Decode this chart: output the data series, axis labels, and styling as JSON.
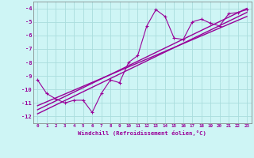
{
  "xlabel": "Windchill (Refroidissement éolien,°C)",
  "bg_color": "#cef5f5",
  "grid_color": "#aadddd",
  "line_color": "#990099",
  "x_data": [
    0,
    1,
    2,
    3,
    4,
    5,
    6,
    7,
    8,
    9,
    10,
    11,
    12,
    13,
    14,
    15,
    16,
    17,
    18,
    19,
    20,
    21,
    22,
    23
  ],
  "y_scatter": [
    -9.3,
    -10.3,
    -10.7,
    -11.0,
    -10.8,
    -10.8,
    -11.7,
    -10.3,
    -9.3,
    -9.5,
    -8.0,
    -7.5,
    -5.3,
    -4.1,
    -4.6,
    -6.2,
    -6.3,
    -5.0,
    -4.8,
    -5.1,
    -5.3,
    -4.4,
    -4.3,
    -4.1
  ],
  "reg_line1": [
    -11.5,
    -4.0
  ],
  "reg_line2": [
    -11.8,
    -4.3
  ],
  "reg_line3": [
    -11.2,
    -4.6
  ],
  "xlim": [
    -0.5,
    23.5
  ],
  "ylim": [
    -12.5,
    -3.5
  ],
  "yticks": [
    -12,
    -11,
    -10,
    -9,
    -8,
    -7,
    -6,
    -5,
    -4
  ],
  "xticks": [
    0,
    1,
    2,
    3,
    4,
    5,
    6,
    7,
    8,
    9,
    10,
    11,
    12,
    13,
    14,
    15,
    16,
    17,
    18,
    19,
    20,
    21,
    22,
    23
  ]
}
